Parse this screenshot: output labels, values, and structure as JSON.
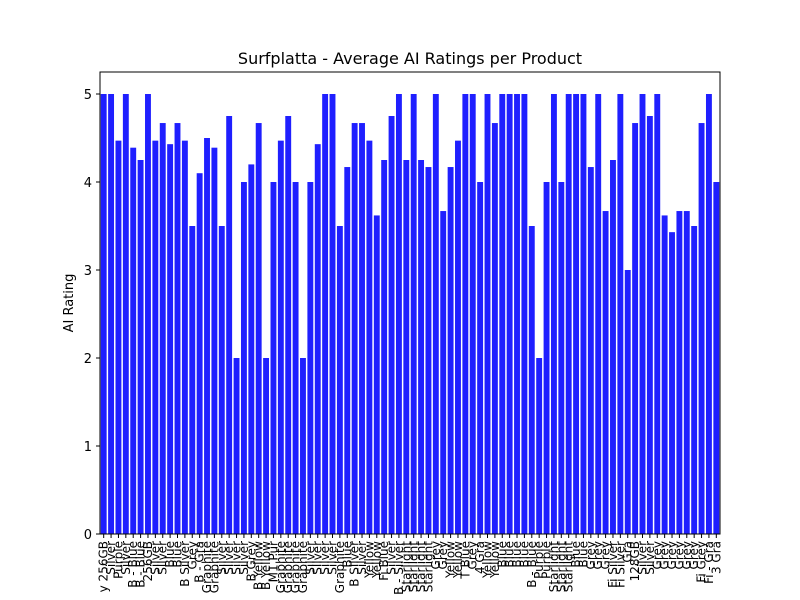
{
  "chart_data": {
    "type": "bar",
    "title": "Surfplatta - Average AI Ratings per Product",
    "ylabel": "AI Rating",
    "xlabel": "",
    "ylim": [
      0,
      5.25
    ],
    "yticks": [
      0,
      1,
      2,
      3,
      4,
      5
    ],
    "grid": false,
    "bar_color": "#0000FF",
    "values": [
      5,
      5,
      4.47,
      5,
      4.39,
      4.25,
      5,
      4.47,
      4.67,
      4.43,
      4.67,
      4.47,
      3.5,
      4.1,
      4.5,
      4.39,
      3.5,
      4.75,
      2,
      4,
      4.2,
      4.67,
      2,
      4,
      4.47,
      4.75,
      4,
      2,
      4,
      4.43,
      5,
      5,
      3.5,
      4.17,
      4.67,
      4.67,
      4.47,
      3.62,
      4.25,
      4.75,
      5,
      4.25,
      5,
      4.25,
      4.17,
      5,
      3.67,
      4.17,
      4.47,
      5,
      5,
      4,
      5,
      4.67,
      5,
      5,
      5,
      5,
      3.5,
      2,
      4,
      5,
      4,
      5,
      5,
      5,
      4.17,
      5,
      3.67,
      4.25,
      5,
      3,
      4.67,
      5,
      4.75,
      5,
      3.62,
      3.43,
      3.67,
      3.67,
      3.5,
      4.67,
      5,
      4
    ],
    "categories": [
      "y 256GB",
      "Silver",
      "Purple",
      "Silver",
      "B - Blue",
      "B - Blue",
      "256GB",
      "Silver",
      "Silver",
      "Blue",
      "Blue",
      "B Silver",
      "Grey",
      "B - Gra",
      "Graphite",
      "Graphite",
      "Silver",
      "Silver",
      "Silver",
      "Silver",
      "B Grey",
      "B Yellow",
      "B Yellow",
      "M1 Pur",
      "Graphite",
      "Graphite",
      "Graphite",
      "Graphite",
      "Silver",
      "Silver",
      "Silver",
      "Silver",
      "Graphite",
      "Blue",
      "B Silver",
      "Silver",
      "Yellow",
      "Yellow",
      "Fi Blue",
      "Silver",
      "B - Silver",
      "Starlight",
      "Starlight",
      "Starlight",
      "Starlight",
      "Grey",
      "Grey",
      "Yellow",
      "Yellow",
      "T Blue",
      "Grey",
      "4 Gra",
      "Yellow",
      "Yellow",
      "Blue",
      "Blue",
      "Blue",
      "Blue",
      "B - Blue",
      "Purple",
      "Purple",
      "Starlight",
      "Starlight",
      "Starlight",
      "Blue",
      "Blue",
      "Grey",
      "Grey",
      "Grey",
      "Fi Silver",
      "Fi Silver",
      "Gra",
      "128GB",
      "Silver",
      "Silver",
      "Grey",
      "Grey",
      "Grey",
      "Grey",
      "Grey",
      "Grey",
      "Fi Grey",
      "Fi - Gra",
      "3 Gra"
    ]
  }
}
